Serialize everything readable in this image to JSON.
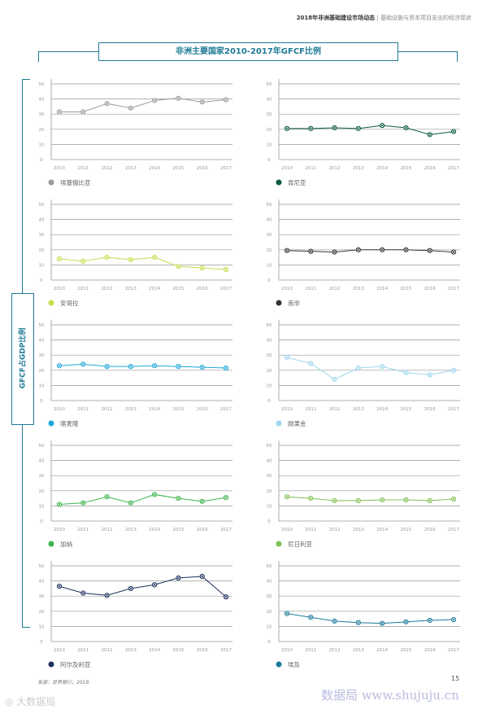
{
  "header": {
    "report": "2018年非洲基础建设市场动态",
    "sep": "|",
    "section": "基础设施与资本项目支出的经济现状"
  },
  "figure_title": "非洲主要国家2010-2017年GFCF比例",
  "y_axis_label": "GFCF占GDP比例",
  "source": "来源：世界银行，2018",
  "page_number": "15",
  "watermark": "数据局 www.shujuju.cn",
  "logo": "大数据局",
  "chart_data": [
    {
      "type": "line",
      "legend": "埃塞俄比亚",
      "color": "#9a9a9a",
      "x": [
        "2010",
        "2011",
        "2012",
        "2013",
        "2014",
        "2015",
        "2016",
        "2017"
      ],
      "values": [
        31.5,
        31.5,
        37,
        34,
        39,
        40.5,
        38,
        39.5
      ],
      "ylim": [
        0,
        50
      ],
      "yticks": [
        "0",
        "10",
        "20",
        "30",
        "40",
        "50"
      ]
    },
    {
      "type": "line",
      "legend": "肯尼亚",
      "color": "#0b5c3b",
      "x": [
        "2010",
        "2011",
        "2012",
        "2013",
        "2014",
        "2015",
        "2016",
        "2017"
      ],
      "values": [
        20.5,
        20.5,
        21,
        20.5,
        22.5,
        21,
        16.5,
        18.5
      ],
      "ylim": [
        0,
        50
      ],
      "yticks": [
        "0",
        "10",
        "20",
        "30",
        "40",
        "50"
      ]
    },
    {
      "type": "line",
      "legend": "安哥拉",
      "color": "#c8dc4c",
      "x": [
        "2010",
        "2011",
        "2012",
        "2013",
        "2014",
        "2015",
        "2016",
        "2017"
      ],
      "values": [
        14,
        12.5,
        15,
        13.5,
        15,
        9,
        8,
        7
      ],
      "ylim": [
        0,
        50
      ],
      "yticks": [
        "0",
        "10",
        "20",
        "30",
        "40",
        "50"
      ]
    },
    {
      "type": "line",
      "legend": "南非",
      "color": "#333333",
      "x": [
        "2010",
        "2011",
        "2012",
        "2013",
        "2014",
        "2015",
        "2016",
        "2017"
      ],
      "values": [
        19.5,
        19,
        18.5,
        20,
        20,
        20,
        19.5,
        18.5
      ],
      "ylim": [
        0,
        50
      ],
      "yticks": [
        "0",
        "10",
        "20",
        "30",
        "40",
        "50"
      ]
    },
    {
      "type": "line",
      "legend": "喀麦隆",
      "color": "#1fa6d8",
      "x": [
        "2010",
        "2011",
        "2012",
        "2013",
        "2014",
        "2015",
        "2016",
        "2017"
      ],
      "values": [
        23,
        24,
        22.5,
        22.5,
        23,
        22.5,
        22,
        21.5
      ],
      "ylim": [
        0,
        50
      ],
      "yticks": [
        "0",
        "10",
        "20",
        "30",
        "40",
        "50"
      ]
    },
    {
      "type": "line",
      "legend": "刚果金",
      "color": "#9fd6ee",
      "x": [
        "2010",
        "2011",
        "2012",
        "2013",
        "2014",
        "2015",
        "2016",
        "2017"
      ],
      "values": [
        28.5,
        24.5,
        14,
        21.5,
        22.5,
        18.5,
        17,
        20
      ],
      "ylim": [
        0,
        50
      ],
      "yticks": [
        "0",
        "10",
        "20",
        "30",
        "40",
        "50"
      ]
    },
    {
      "type": "line",
      "legend": "加纳",
      "color": "#3cb44b",
      "x": [
        "2010",
        "2011",
        "2012",
        "2013",
        "2014",
        "2015",
        "2016",
        "2017"
      ],
      "values": [
        11,
        12,
        16,
        12,
        17.5,
        15,
        13,
        15.5
      ],
      "ylim": [
        0,
        50
      ],
      "yticks": [
        "0",
        "10",
        "20",
        "30",
        "40",
        "50"
      ]
    },
    {
      "type": "line",
      "legend": "尼日利亚",
      "color": "#80c151",
      "x": [
        "2010",
        "2011",
        "2012",
        "2013",
        "2014",
        "2015",
        "2016",
        "2017"
      ],
      "values": [
        16,
        15,
        13.5,
        13.5,
        14,
        14,
        13.5,
        14.5
      ],
      "ylim": [
        0,
        50
      ],
      "yticks": [
        "0",
        "10",
        "20",
        "30",
        "40",
        "50"
      ]
    },
    {
      "type": "line",
      "legend": "阿尔及利亚",
      "color": "#1c2f5e",
      "x": [
        "2010",
        "2011",
        "2012",
        "2013",
        "2014",
        "2015",
        "2016",
        "2017"
      ],
      "values": [
        36.5,
        32,
        30.5,
        35,
        37.5,
        42,
        43,
        29.5
      ],
      "ylim": [
        0,
        50
      ],
      "yticks": [
        "0",
        "10",
        "20",
        "30",
        "40",
        "50"
      ]
    },
    {
      "type": "line",
      "legend": "埃及",
      "color": "#1a7a9a",
      "x": [
        "2010",
        "2011",
        "2012",
        "2013",
        "2014",
        "2015",
        "2016",
        "2017"
      ],
      "values": [
        18.5,
        16,
        13.5,
        12.5,
        12,
        13,
        14,
        14.5
      ],
      "ylim": [
        0,
        50
      ],
      "yticks": [
        "0",
        "10",
        "20",
        "30",
        "40",
        "50"
      ]
    }
  ]
}
